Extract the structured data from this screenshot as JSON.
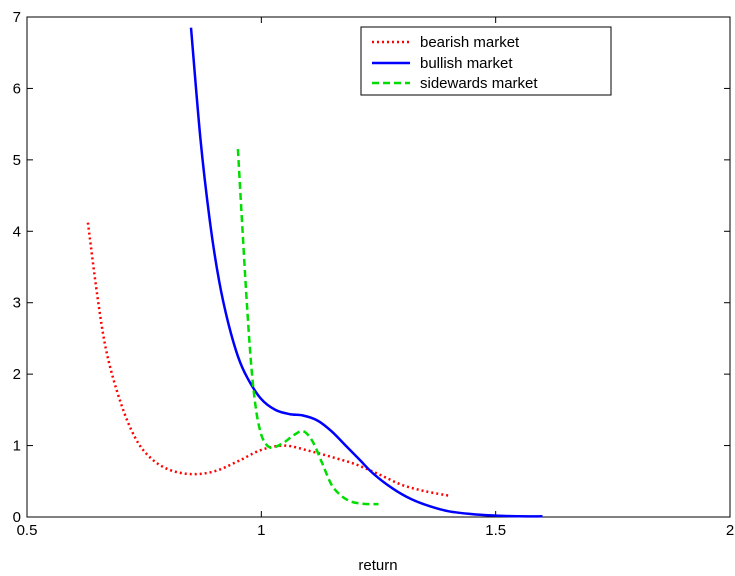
{
  "chart_data": {
    "type": "line",
    "title": "",
    "xlabel": "return",
    "ylabel": "",
    "xlim": [
      0.5,
      2
    ],
    "ylim": [
      0,
      7
    ],
    "xticks": [
      0.5,
      1,
      1.5,
      2
    ],
    "xtick_labels": [
      "0.5",
      "1",
      "1.5",
      "2"
    ],
    "yticks": [
      0,
      1,
      2,
      3,
      4,
      5,
      6,
      7
    ],
    "ytick_labels": [
      "0",
      "1",
      "2",
      "3",
      "4",
      "5",
      "6",
      "7"
    ],
    "grid": false,
    "legend_position": "top-right",
    "series": [
      {
        "name": "bearish market",
        "color": "#ff0000",
        "style": "dotted",
        "x": [
          0.63,
          0.65,
          0.67,
          0.7,
          0.73,
          0.76,
          0.8,
          0.85,
          0.9,
          0.95,
          1.0,
          1.05,
          1.1,
          1.15,
          1.2,
          1.25,
          1.3,
          1.35,
          1.4
        ],
        "y": [
          4.12,
          3.1,
          2.3,
          1.6,
          1.12,
          0.85,
          0.67,
          0.6,
          0.64,
          0.78,
          0.94,
          1.0,
          0.93,
          0.84,
          0.74,
          0.6,
          0.45,
          0.36,
          0.3
        ]
      },
      {
        "name": "bullish market",
        "color": "#0000ff",
        "style": "solid",
        "x": [
          0.85,
          0.87,
          0.89,
          0.91,
          0.93,
          0.95,
          0.97,
          1.0,
          1.03,
          1.06,
          1.09,
          1.12,
          1.15,
          1.18,
          1.21,
          1.24,
          1.28,
          1.32,
          1.36,
          1.4,
          1.45,
          1.5,
          1.55,
          1.6
        ],
        "y": [
          6.85,
          5.3,
          4.15,
          3.3,
          2.7,
          2.25,
          1.95,
          1.65,
          1.5,
          1.44,
          1.42,
          1.35,
          1.2,
          1.0,
          0.8,
          0.6,
          0.4,
          0.25,
          0.15,
          0.08,
          0.04,
          0.02,
          0.01,
          0.01
        ]
      },
      {
        "name": "sidewards market",
        "color": "#00dd00",
        "style": "dashed",
        "x": [
          0.95,
          0.96,
          0.97,
          0.98,
          0.99,
          1.0,
          1.01,
          1.02,
          1.03,
          1.05,
          1.07,
          1.09,
          1.11,
          1.13,
          1.15,
          1.17,
          1.19,
          1.21,
          1.23,
          1.25
        ],
        "y": [
          5.15,
          4.0,
          2.9,
          2.0,
          1.45,
          1.15,
          1.02,
          0.97,
          0.98,
          1.05,
          1.15,
          1.2,
          1.05,
          0.75,
          0.45,
          0.3,
          0.22,
          0.19,
          0.18,
          0.18
        ]
      }
    ]
  }
}
